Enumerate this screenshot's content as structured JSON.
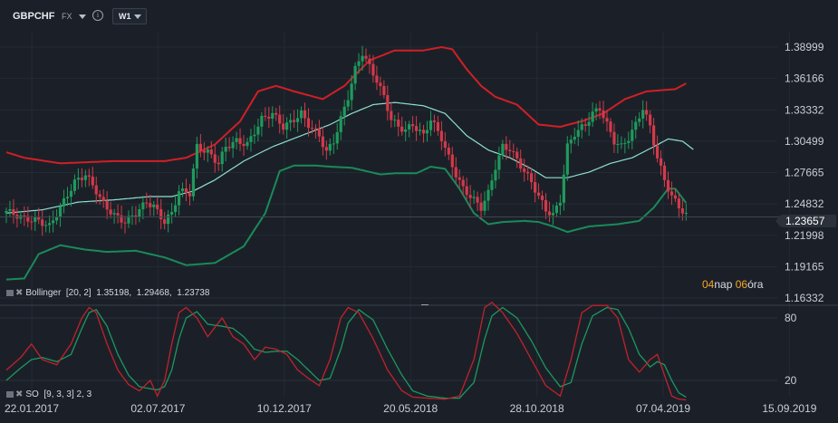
{
  "toolbar": {
    "symbol": "GBPCHF",
    "market": "FX",
    "info_icon": "info-icon",
    "timeframe": "W1"
  },
  "price_axis": [
    "1.38999",
    "1.36166",
    "1.33332",
    "1.30499",
    "1.27665",
    "1.24832",
    "1.21998",
    "1.19165",
    "1.16332"
  ],
  "current_price": "1.23657",
  "oscillator_axis": [
    "80",
    "20"
  ],
  "time_axis": [
    "22.01.2017",
    "02.07.2017",
    "10.12.2017",
    "20.05.2018",
    "28.10.2018",
    "07.04.2019",
    "15.09.2019"
  ],
  "bollinger_legend": {
    "name": "Bollinger",
    "params": "[20, 2]",
    "upper": "1.35198,",
    "middle": "1.29468,",
    "lower": "1.23738"
  },
  "so_legend": {
    "name": "SO",
    "params": "[9, 3, 3] 2, 3"
  },
  "countdown": {
    "days": "04",
    "days_label": "nap",
    "hours": "06",
    "hours_label": "óra"
  },
  "colors": {
    "bg": "#1b2028",
    "up": "#1f9a5d",
    "down": "#d23a4a",
    "upper_band": "#d01f26",
    "lower_band": "#1a8a5a",
    "middle_band": "#8fe0d0",
    "so_k": "#c0222c",
    "so_d": "#1a9960"
  },
  "chart_data": {
    "type": "candlestick",
    "ylim": [
      1.16332,
      1.4
    ],
    "anchors": [
      [
        0,
        1.242
      ],
      [
        5,
        1.235
      ],
      [
        9,
        1.233
      ],
      [
        12,
        1.228
      ],
      [
        15,
        1.245
      ],
      [
        19,
        1.268
      ],
      [
        22,
        1.275
      ],
      [
        25,
        1.26
      ],
      [
        27,
        1.248
      ],
      [
        30,
        1.238
      ],
      [
        33,
        1.232
      ],
      [
        36,
        1.24
      ],
      [
        39,
        1.25
      ],
      [
        41,
        1.246
      ],
      [
        44,
        1.232
      ],
      [
        46,
        1.24
      ],
      [
        48,
        1.26
      ],
      [
        51,
        1.258
      ],
      [
        53,
        1.3
      ],
      [
        56,
        1.295
      ],
      [
        59,
        1.285
      ],
      [
        61,
        1.3
      ],
      [
        64,
        1.305
      ],
      [
        67,
        1.302
      ],
      [
        71,
        1.325
      ],
      [
        74,
        1.33
      ],
      [
        77,
        1.318
      ],
      [
        79,
        1.322
      ],
      [
        82,
        1.33
      ],
      [
        84,
        1.32
      ],
      [
        87,
        1.31
      ],
      [
        89,
        1.295
      ],
      [
        91,
        1.305
      ],
      [
        93,
        1.325
      ],
      [
        95,
        1.345
      ],
      [
        97,
        1.37
      ],
      [
        99,
        1.385
      ],
      [
        101,
        1.372
      ],
      [
        103,
        1.36
      ],
      [
        105,
        1.345
      ],
      [
        107,
        1.325
      ],
      [
        109,
        1.318
      ],
      [
        111,
        1.315
      ],
      [
        113,
        1.32
      ],
      [
        116,
        1.31
      ],
      [
        118,
        1.325
      ],
      [
        121,
        1.308
      ],
      [
        123,
        1.29
      ],
      [
        125,
        1.275
      ],
      [
        127,
        1.262
      ],
      [
        130,
        1.252
      ],
      [
        132,
        1.245
      ],
      [
        134,
        1.258
      ],
      [
        136,
        1.282
      ],
      [
        138,
        1.3
      ],
      [
        140,
        1.298
      ],
      [
        142,
        1.288
      ],
      [
        144,
        1.278
      ],
      [
        146,
        1.268
      ],
      [
        148,
        1.255
      ],
      [
        150,
        1.243
      ],
      [
        152,
        1.238
      ],
      [
        154,
        1.252
      ],
      [
        156,
        1.3
      ],
      [
        158,
        1.312
      ],
      [
        161,
        1.32
      ],
      [
        163,
        1.33
      ],
      [
        165,
        1.335
      ],
      [
        167,
        1.32
      ],
      [
        169,
        1.305
      ],
      [
        171,
        1.3
      ],
      [
        173,
        1.308
      ],
      [
        175,
        1.32
      ],
      [
        177,
        1.335
      ],
      [
        179,
        1.318
      ],
      [
        181,
        1.29
      ],
      [
        183,
        1.27
      ],
      [
        185,
        1.255
      ],
      [
        187,
        1.246
      ],
      [
        189,
        1.238
      ]
    ],
    "candle_count": 190,
    "bollinger": {
      "upper": [
        [
          0,
          1.295
        ],
        [
          5,
          1.29
        ],
        [
          15,
          1.285
        ],
        [
          30,
          1.287
        ],
        [
          44,
          1.287
        ],
        [
          50,
          1.29
        ],
        [
          58,
          1.302
        ],
        [
          65,
          1.323
        ],
        [
          70,
          1.35
        ],
        [
          75,
          1.355
        ],
        [
          80,
          1.35
        ],
        [
          88,
          1.343
        ],
        [
          94,
          1.355
        ],
        [
          101,
          1.378
        ],
        [
          108,
          1.387
        ],
        [
          116,
          1.387
        ],
        [
          121,
          1.39
        ],
        [
          124,
          1.388
        ],
        [
          128,
          1.37
        ],
        [
          132,
          1.355
        ],
        [
          136,
          1.345
        ],
        [
          142,
          1.338
        ],
        [
          148,
          1.32
        ],
        [
          154,
          1.318
        ],
        [
          160,
          1.323
        ],
        [
          166,
          1.33
        ],
        [
          172,
          1.343
        ],
        [
          178,
          1.35
        ],
        [
          186,
          1.352
        ],
        [
          190,
          1.359
        ]
      ],
      "middle": [
        [
          0,
          1.24
        ],
        [
          10,
          1.243
        ],
        [
          20,
          1.25
        ],
        [
          30,
          1.252
        ],
        [
          40,
          1.255
        ],
        [
          46,
          1.255
        ],
        [
          52,
          1.26
        ],
        [
          58,
          1.27
        ],
        [
          66,
          1.287
        ],
        [
          74,
          1.3
        ],
        [
          82,
          1.31
        ],
        [
          90,
          1.32
        ],
        [
          96,
          1.33
        ],
        [
          102,
          1.338
        ],
        [
          108,
          1.34
        ],
        [
          116,
          1.337
        ],
        [
          122,
          1.33
        ],
        [
          128,
          1.31
        ],
        [
          134,
          1.297
        ],
        [
          140,
          1.29
        ],
        [
          146,
          1.28
        ],
        [
          150,
          1.272
        ],
        [
          156,
          1.272
        ],
        [
          162,
          1.277
        ],
        [
          168,
          1.285
        ],
        [
          174,
          1.29
        ],
        [
          180,
          1.3
        ],
        [
          184,
          1.307
        ],
        [
          188,
          1.305
        ],
        [
          192,
          1.295
        ]
      ],
      "lower": [
        [
          0,
          1.18
        ],
        [
          5,
          1.181
        ],
        [
          9,
          1.203
        ],
        [
          15,
          1.211
        ],
        [
          22,
          1.207
        ],
        [
          28,
          1.205
        ],
        [
          36,
          1.206
        ],
        [
          44,
          1.2
        ],
        [
          50,
          1.193
        ],
        [
          58,
          1.195
        ],
        [
          66,
          1.21
        ],
        [
          72,
          1.24
        ],
        [
          76,
          1.278
        ],
        [
          80,
          1.283
        ],
        [
          86,
          1.283
        ],
        [
          90,
          1.282
        ],
        [
          96,
          1.281
        ],
        [
          104,
          1.275
        ],
        [
          108,
          1.276
        ],
        [
          114,
          1.276
        ],
        [
          118,
          1.282
        ],
        [
          122,
          1.28
        ],
        [
          126,
          1.262
        ],
        [
          130,
          1.24
        ],
        [
          134,
          1.23
        ],
        [
          138,
          1.232
        ],
        [
          144,
          1.233
        ],
        [
          148,
          1.232
        ],
        [
          152,
          1.228
        ],
        [
          156,
          1.223
        ],
        [
          162,
          1.228
        ],
        [
          170,
          1.23
        ],
        [
          176,
          1.233
        ],
        [
          180,
          1.245
        ],
        [
          184,
          1.262
        ],
        [
          186,
          1.262
        ],
        [
          190,
          1.245
        ]
      ]
    },
    "stochastic": {
      "ylim": [
        0,
        100
      ],
      "k": [
        [
          0,
          30
        ],
        [
          4,
          42
        ],
        [
          7,
          55
        ],
        [
          10,
          40
        ],
        [
          14,
          35
        ],
        [
          18,
          55
        ],
        [
          21,
          80
        ],
        [
          23,
          90
        ],
        [
          25,
          85
        ],
        [
          28,
          55
        ],
        [
          31,
          30
        ],
        [
          34,
          16
        ],
        [
          37,
          10
        ],
        [
          40,
          20
        ],
        [
          42,
          5
        ],
        [
          44,
          20
        ],
        [
          46,
          55
        ],
        [
          48,
          85
        ],
        [
          50,
          90
        ],
        [
          53,
          80
        ],
        [
          56,
          62
        ],
        [
          60,
          80
        ],
        [
          63,
          62
        ],
        [
          66,
          55
        ],
        [
          69,
          40
        ],
        [
          72,
          52
        ],
        [
          75,
          50
        ],
        [
          78,
          45
        ],
        [
          81,
          30
        ],
        [
          84,
          22
        ],
        [
          87,
          15
        ],
        [
          90,
          40
        ],
        [
          93,
          80
        ],
        [
          95,
          90
        ],
        [
          98,
          85
        ],
        [
          102,
          60
        ],
        [
          106,
          30
        ],
        [
          110,
          10
        ],
        [
          113,
          4
        ],
        [
          117,
          3
        ],
        [
          122,
          2
        ],
        [
          126,
          5
        ],
        [
          130,
          40
        ],
        [
          133,
          90
        ],
        [
          135,
          95
        ],
        [
          138,
          85
        ],
        [
          142,
          65
        ],
        [
          146,
          40
        ],
        [
          150,
          15
        ],
        [
          154,
          5
        ],
        [
          157,
          40
        ],
        [
          160,
          85
        ],
        [
          163,
          92
        ],
        [
          167,
          92
        ],
        [
          170,
          80
        ],
        [
          173,
          40
        ],
        [
          176,
          28
        ],
        [
          179,
          40
        ],
        [
          181,
          45
        ],
        [
          183,
          25
        ],
        [
          185,
          5
        ],
        [
          187,
          2
        ],
        [
          190,
          1
        ]
      ],
      "d": [
        [
          0,
          20
        ],
        [
          4,
          32
        ],
        [
          7,
          40
        ],
        [
          10,
          42
        ],
        [
          14,
          38
        ],
        [
          18,
          45
        ],
        [
          21,
          70
        ],
        [
          23,
          85
        ],
        [
          25,
          88
        ],
        [
          28,
          72
        ],
        [
          31,
          45
        ],
        [
          34,
          25
        ],
        [
          37,
          14
        ],
        [
          40,
          12
        ],
        [
          42,
          11
        ],
        [
          44,
          14
        ],
        [
          46,
          30
        ],
        [
          48,
          60
        ],
        [
          50,
          80
        ],
        [
          53,
          86
        ],
        [
          56,
          74
        ],
        [
          60,
          72
        ],
        [
          63,
          70
        ],
        [
          66,
          62
        ],
        [
          69,
          50
        ],
        [
          72,
          47
        ],
        [
          75,
          48
        ],
        [
          78,
          48
        ],
        [
          81,
          40
        ],
        [
          84,
          30
        ],
        [
          87,
          20
        ],
        [
          90,
          22
        ],
        [
          93,
          50
        ],
        [
          95,
          75
        ],
        [
          98,
          88
        ],
        [
          102,
          78
        ],
        [
          106,
          50
        ],
        [
          110,
          25
        ],
        [
          113,
          10
        ],
        [
          117,
          5
        ],
        [
          122,
          3
        ],
        [
          126,
          3
        ],
        [
          130,
          18
        ],
        [
          133,
          60
        ],
        [
          135,
          82
        ],
        [
          138,
          90
        ],
        [
          142,
          80
        ],
        [
          146,
          58
        ],
        [
          150,
          32
        ],
        [
          154,
          14
        ],
        [
          157,
          18
        ],
        [
          160,
          55
        ],
        [
          163,
          82
        ],
        [
          167,
          90
        ],
        [
          170,
          88
        ],
        [
          173,
          70
        ],
        [
          176,
          45
        ],
        [
          179,
          33
        ],
        [
          181,
          38
        ],
        [
          183,
          35
        ],
        [
          185,
          20
        ],
        [
          187,
          8
        ],
        [
          190,
          2
        ]
      ]
    }
  }
}
